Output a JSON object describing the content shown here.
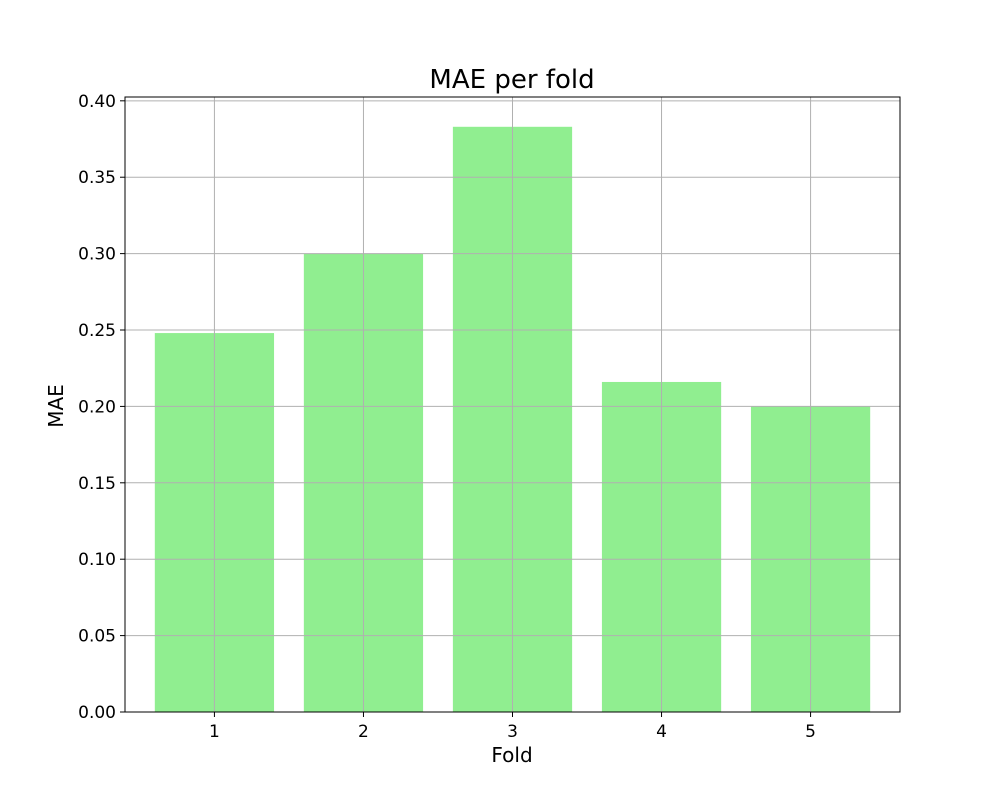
{
  "chart_data": {
    "type": "bar",
    "title": "MAE per fold",
    "xlabel": "Fold",
    "ylabel": "MAE",
    "categories": [
      "1",
      "2",
      "3",
      "4",
      "5"
    ],
    "values": [
      0.248,
      0.3,
      0.383,
      0.216,
      0.2
    ],
    "ylim": [
      0,
      0.4025
    ],
    "yticks": [
      0.0,
      0.05,
      0.1,
      0.15,
      0.2,
      0.25,
      0.3,
      0.35,
      0.4
    ],
    "ytick_labels": [
      "0.00",
      "0.05",
      "0.10",
      "0.15",
      "0.20",
      "0.25",
      "0.30",
      "0.35",
      "0.40"
    ],
    "grid": true,
    "bar_color": "#90ee90"
  }
}
